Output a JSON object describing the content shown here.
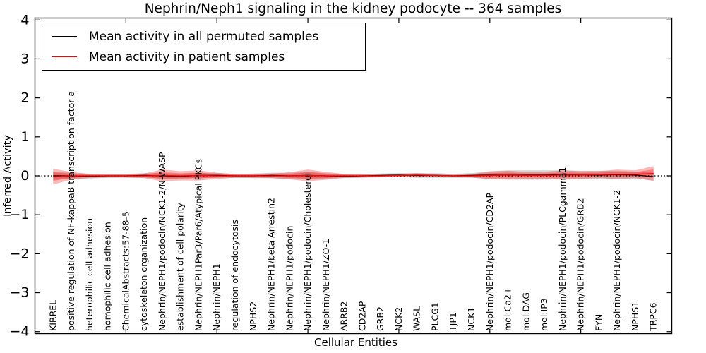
{
  "chart_data": {
    "type": "line",
    "title": "Nephrin/Neph1 signaling in the kidney podocyte -- 364 samples",
    "xlabel": "Cellular Entities",
    "ylabel": "Inferred Activity",
    "ylim": [
      -4,
      4
    ],
    "yticks": [
      4,
      3,
      2,
      1,
      0,
      -1,
      -2,
      -3,
      -4
    ],
    "xlim": [
      0,
      35
    ],
    "xticks": [
      5,
      10,
      15,
      20,
      25,
      30
    ],
    "zero_line": 0,
    "grid": false,
    "legend_position": "upper left",
    "categories": [
      "KIRREL",
      "positive regulation of NF-kappaB transcription factor a",
      "heterophilic cell adhesion",
      "homophilic cell adhesion",
      "ChemicalAbstracts:57-88-5",
      "cytoskeleton organization",
      "Nephrin/NEPH1/podocin/NCK1-2/N-WASP",
      "establishment of cell polarity",
      "Nephrin/NEPH1Par3/Par6/Atypical PKCs",
      "Nephrin/NEPH1",
      "regulation of endocytosis",
      "NPHS2",
      "Nephrin/NEPH1/beta Arrestin2",
      "Nephrin/NEPH1/podocin",
      "Nephrin/NEPH1/podocin/Cholesterol",
      "Nephrin/NEPH1/ZO-1",
      "ARRB2",
      "CD2AP",
      "GRB2",
      "NCK2",
      "WASL",
      "PLCG1",
      "TJP1",
      "NCK1",
      "Nephrin/NEPH1/podocin/CD2AP",
      "mol:Ca2+",
      "mol:DAG",
      "mol:IP3",
      "Nephrin/NEPH1/podocin/PLCgamma1",
      "Nephrin/NEPH1/podocin/GRB2",
      "FYN",
      "Nephrin/NEPH1/podocin/NCK1-2",
      "NPHS1",
      "TRPC6"
    ],
    "series": [
      {
        "name": "Mean activity in all permuted samples",
        "color": "#000000",
        "band_color": "#aaaaaa",
        "values": [
          0.0,
          0.0,
          -0.01,
          0.0,
          0.0,
          0.01,
          0.0,
          -0.01,
          0.01,
          0.01,
          0.0,
          0.0,
          0.01,
          0.0,
          0.01,
          0.0,
          -0.01,
          0.0,
          0.01,
          0.02,
          0.01,
          0.01,
          0.0,
          0.01,
          0.02,
          0.02,
          0.02,
          0.02,
          0.03,
          0.02,
          0.02,
          0.03,
          0.02,
          -0.02
        ],
        "band_halfwidth": [
          0.1,
          0.08,
          0.06,
          0.05,
          0.05,
          0.06,
          0.07,
          0.06,
          0.07,
          0.06,
          0.05,
          0.06,
          0.07,
          0.08,
          0.09,
          0.07,
          0.05,
          0.05,
          0.05,
          0.05,
          0.06,
          0.06,
          0.05,
          0.06,
          0.1,
          0.12,
          0.12,
          0.12,
          0.11,
          0.11,
          0.11,
          0.1,
          0.09,
          0.1
        ]
      },
      {
        "name": "Mean activity in patient samples",
        "color": "#ff0000",
        "band_color": "#ff0000",
        "values": [
          -0.02,
          0.0,
          0.0,
          0.0,
          0.0,
          0.0,
          0.01,
          0.0,
          0.01,
          0.0,
          0.0,
          0.0,
          0.0,
          0.0,
          0.01,
          0.0,
          0.0,
          0.0,
          0.0,
          0.01,
          0.02,
          0.01,
          0.0,
          0.0,
          0.01,
          0.02,
          0.01,
          0.01,
          0.02,
          0.02,
          0.03,
          0.04,
          0.04,
          0.06
        ],
        "band_halfwidth": [
          0.2,
          0.1,
          0.05,
          0.04,
          0.04,
          0.06,
          0.15,
          0.12,
          0.13,
          0.08,
          0.05,
          0.05,
          0.06,
          0.09,
          0.15,
          0.1,
          0.05,
          0.04,
          0.03,
          0.03,
          0.05,
          0.03,
          0.03,
          0.04,
          0.1,
          0.11,
          0.09,
          0.09,
          0.12,
          0.1,
          0.09,
          0.12,
          0.1,
          0.19
        ]
      }
    ]
  }
}
